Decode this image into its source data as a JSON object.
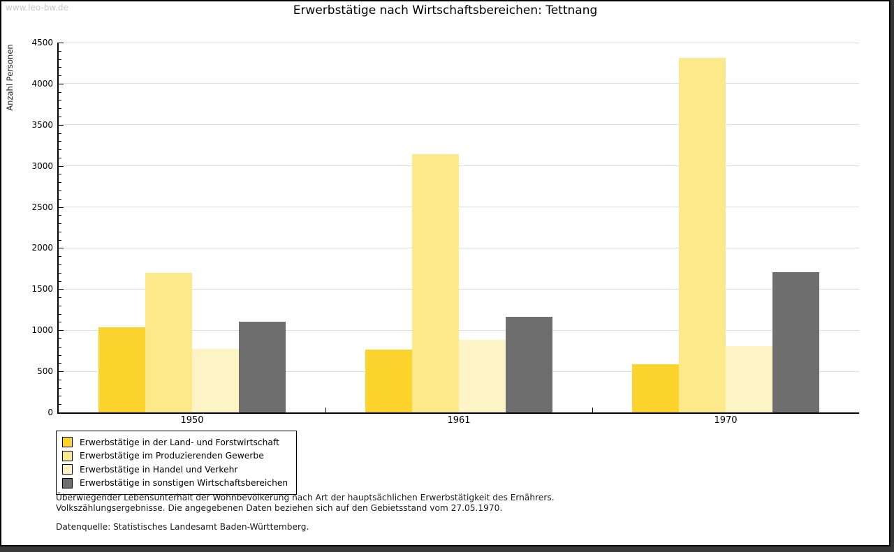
{
  "page": {
    "watermark": "www.leo-bw.de",
    "title": "Erwerbstätige nach Wirtschaftsbereichen: Tettnang"
  },
  "chart_data": {
    "type": "bar",
    "title": "Erwerbstätige nach Wirtschaftsbereichen: Tettnang",
    "xlabel": "",
    "ylabel": "Anzahl Personen",
    "ylim": [
      0,
      4500
    ],
    "ytick_step": 500,
    "minor_tick_step": 100,
    "grid": true,
    "legend_position": "bottom-left",
    "categories": [
      "1950",
      "1961",
      "1970"
    ],
    "series": [
      {
        "name": "Erwerbstätige in der Land- und Forstwirtschaft",
        "color": "#FCD42D",
        "values": [
          1040,
          760,
          590
        ]
      },
      {
        "name": "Erwerbstätige im Produzierenden Gewerbe",
        "color": "#FCE98A",
        "values": [
          1700,
          3140,
          4310
        ]
      },
      {
        "name": "Erwerbstätige in Handel und Verkehr",
        "color": "#FCF4C4",
        "values": [
          770,
          880,
          810
        ]
      },
      {
        "name": "Erwerbstätige in sonstigen Wirtschaftsbereichen",
        "color": "#6E6E6E",
        "values": [
          1100,
          1160,
          1710
        ]
      }
    ]
  },
  "footer": {
    "line1": "Überwiegender Lebensunterhalt der Wohnbevölkerung nach Art der hauptsächlichen Erwerbstätigkeit des Ernährers.",
    "line2": "Volkszählungsergebnisse. Die angegebenen Daten beziehen sich auf den Gebietsstand vom 27.05.1970.",
    "source": "Datenquelle: Statistisches Landesamt Baden-Württemberg."
  },
  "colors": {
    "axis": "#000000",
    "grid": "#DEDEDE",
    "watermark": "#C8C8C8",
    "background": "#FFFFFF",
    "frame": "#383838"
  }
}
